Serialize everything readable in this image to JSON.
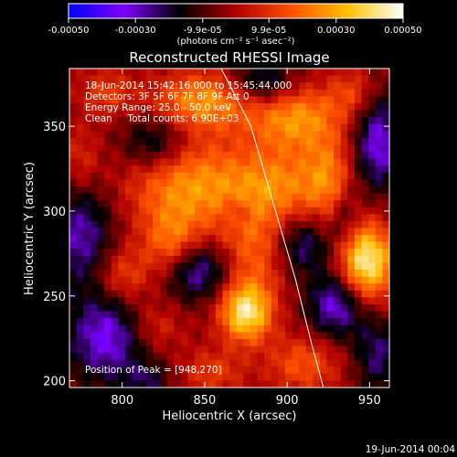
{
  "chart_data": {
    "type": "heatmap",
    "title": "Reconstructed RHESSI Image",
    "xlabel": "Heliocentric X (arcsec)",
    "ylabel": "Heliocentric Y (arcsec)",
    "xlim": [
      768,
      962
    ],
    "ylim": [
      196,
      384
    ],
    "x_ticks": [
      "800",
      "850",
      "900",
      "950"
    ],
    "y_ticks": [
      "200",
      "250",
      "300",
      "350"
    ],
    "x_tick_values": [
      800,
      850,
      900,
      950
    ],
    "y_tick_values": [
      200,
      250,
      300,
      350
    ],
    "colorbar": {
      "range": [
        -0.0005,
        0.0005
      ],
      "tick_labels": [
        "-0.00050",
        "-0.00030",
        "-9.9e-05",
        "9.9e-05",
        "0.00030",
        "0.00050"
      ],
      "tick_values": [
        -0.0005,
        -0.0003,
        -9.9e-05,
        9.9e-05,
        0.0003,
        0.0005
      ],
      "units": "(photons cm⁻² s⁻¹ asec⁻²)",
      "colors": [
        "#0000ff",
        "#7f00ff",
        "#000000",
        "#b00000",
        "#ff5000",
        "#ffc000",
        "#ffffff"
      ]
    },
    "annotations": {
      "time": "18-Jun-2014 15:42:16.000 to 15:45:44.000",
      "detectors": "Detectors: 3F 5F 6F 7F 8F 9F Att 0",
      "energy": "Energy Range: 25.0 - 50.0 keV",
      "clean": "Clean     Total counts: 6.90E+03",
      "peak": "Position of Peak = [948,270]"
    },
    "peak": [
      948,
      270
    ],
    "limb_points": [
      [
        860,
        384
      ],
      [
        878,
        350
      ],
      [
        893,
        300
      ],
      [
        905,
        260
      ],
      [
        914,
        225
      ],
      [
        922,
        196
      ]
    ],
    "blobs": [
      {
        "x": 948,
        "y": 270,
        "sx": 12,
        "sy": 16,
        "a": 0.0005
      },
      {
        "x": 875,
        "y": 240,
        "sx": 11,
        "sy": 12,
        "a": 0.00045
      },
      {
        "x": 840,
        "y": 315,
        "sx": 26,
        "sy": 20,
        "a": 0.0003
      },
      {
        "x": 895,
        "y": 315,
        "sx": 22,
        "sy": 16,
        "a": 0.00025
      },
      {
        "x": 850,
        "y": 365,
        "sx": 22,
        "sy": 12,
        "a": 0.0003
      },
      {
        "x": 905,
        "y": 355,
        "sx": 20,
        "sy": 14,
        "a": 0.0003
      },
      {
        "x": 830,
        "y": 280,
        "sx": 12,
        "sy": 14,
        "a": 0.00022
      },
      {
        "x": 880,
        "y": 275,
        "sx": 14,
        "sy": 20,
        "a": 0.0002
      },
      {
        "x": 925,
        "y": 320,
        "sx": 10,
        "sy": 18,
        "a": 0.0002
      },
      {
        "x": 940,
        "y": 370,
        "sx": 10,
        "sy": 10,
        "a": 0.00015
      },
      {
        "x": 800,
        "y": 262,
        "sx": 12,
        "sy": 12,
        "a": 0.00018
      },
      {
        "x": 790,
        "y": 370,
        "sx": 12,
        "sy": 10,
        "a": 0.00015
      },
      {
        "x": 910,
        "y": 210,
        "sx": 16,
        "sy": 12,
        "a": 0.0002
      },
      {
        "x": 855,
        "y": 205,
        "sx": 14,
        "sy": 10,
        "a": 0.00015
      },
      {
        "x": 820,
        "y": 232,
        "sx": 12,
        "sy": 10,
        "a": 0.00012
      },
      {
        "x": 775,
        "y": 330,
        "sx": 8,
        "sy": 14,
        "a": 0.00012
      },
      {
        "x": 775,
        "y": 285,
        "sx": 14,
        "sy": 22,
        "a": -0.00025
      },
      {
        "x": 790,
        "y": 225,
        "sx": 16,
        "sy": 18,
        "a": -0.0003
      },
      {
        "x": 820,
        "y": 340,
        "sx": 14,
        "sy": 12,
        "a": -0.00022
      },
      {
        "x": 845,
        "y": 265,
        "sx": 14,
        "sy": 12,
        "a": -0.00028
      },
      {
        "x": 870,
        "y": 300,
        "sx": 6,
        "sy": 6,
        "a": -0.0001
      },
      {
        "x": 910,
        "y": 280,
        "sx": 12,
        "sy": 12,
        "a": -0.00022
      },
      {
        "x": 930,
        "y": 245,
        "sx": 12,
        "sy": 14,
        "a": -0.0003
      },
      {
        "x": 935,
        "y": 295,
        "sx": 6,
        "sy": 12,
        "a": -0.00015
      },
      {
        "x": 885,
        "y": 375,
        "sx": 14,
        "sy": 10,
        "a": -0.00025
      },
      {
        "x": 955,
        "y": 340,
        "sx": 10,
        "sy": 20,
        "a": -0.0003
      },
      {
        "x": 955,
        "y": 215,
        "sx": 10,
        "sy": 16,
        "a": -0.0002
      },
      {
        "x": 815,
        "y": 200,
        "sx": 10,
        "sy": 8,
        "a": -0.00015
      }
    ],
    "background": -4e-05
  },
  "footer": {
    "timestamp": "19-Jun-2014 00:04"
  }
}
